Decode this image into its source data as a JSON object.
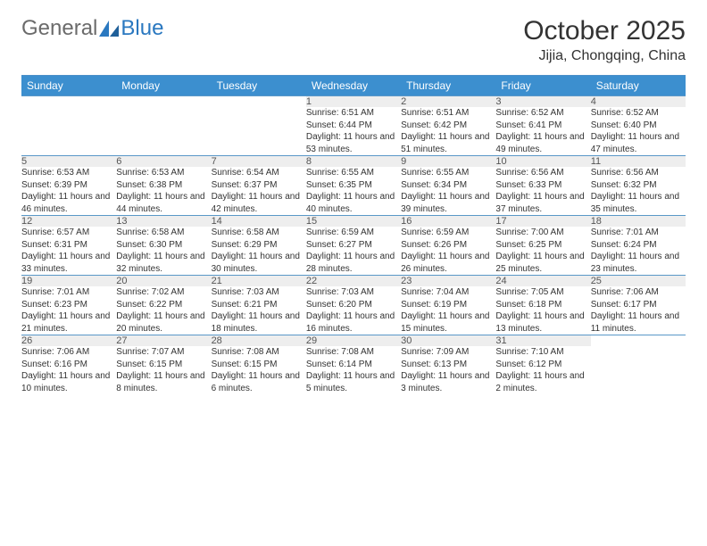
{
  "brand": {
    "part1": "General",
    "part2": "Blue"
  },
  "title": "October 2025",
  "location": "Jijia, Chongqing, China",
  "colors": {
    "header_bg": "#3c8fcf",
    "header_text": "#ffffff",
    "daynum_bg": "#eeeeee",
    "border": "#5a98c8",
    "logo_gray": "#6b6b6b",
    "logo_blue": "#2a78c0",
    "body_text": "#333333"
  },
  "weekdays": [
    "Sunday",
    "Monday",
    "Tuesday",
    "Wednesday",
    "Thursday",
    "Friday",
    "Saturday"
  ],
  "weeks": [
    [
      null,
      null,
      null,
      {
        "n": "1",
        "sr": "6:51 AM",
        "ss": "6:44 PM",
        "dl": "11 hours and 53 minutes."
      },
      {
        "n": "2",
        "sr": "6:51 AM",
        "ss": "6:42 PM",
        "dl": "11 hours and 51 minutes."
      },
      {
        "n": "3",
        "sr": "6:52 AM",
        "ss": "6:41 PM",
        "dl": "11 hours and 49 minutes."
      },
      {
        "n": "4",
        "sr": "6:52 AM",
        "ss": "6:40 PM",
        "dl": "11 hours and 47 minutes."
      }
    ],
    [
      {
        "n": "5",
        "sr": "6:53 AM",
        "ss": "6:39 PM",
        "dl": "11 hours and 46 minutes."
      },
      {
        "n": "6",
        "sr": "6:53 AM",
        "ss": "6:38 PM",
        "dl": "11 hours and 44 minutes."
      },
      {
        "n": "7",
        "sr": "6:54 AM",
        "ss": "6:37 PM",
        "dl": "11 hours and 42 minutes."
      },
      {
        "n": "8",
        "sr": "6:55 AM",
        "ss": "6:35 PM",
        "dl": "11 hours and 40 minutes."
      },
      {
        "n": "9",
        "sr": "6:55 AM",
        "ss": "6:34 PM",
        "dl": "11 hours and 39 minutes."
      },
      {
        "n": "10",
        "sr": "6:56 AM",
        "ss": "6:33 PM",
        "dl": "11 hours and 37 minutes."
      },
      {
        "n": "11",
        "sr": "6:56 AM",
        "ss": "6:32 PM",
        "dl": "11 hours and 35 minutes."
      }
    ],
    [
      {
        "n": "12",
        "sr": "6:57 AM",
        "ss": "6:31 PM",
        "dl": "11 hours and 33 minutes."
      },
      {
        "n": "13",
        "sr": "6:58 AM",
        "ss": "6:30 PM",
        "dl": "11 hours and 32 minutes."
      },
      {
        "n": "14",
        "sr": "6:58 AM",
        "ss": "6:29 PM",
        "dl": "11 hours and 30 minutes."
      },
      {
        "n": "15",
        "sr": "6:59 AM",
        "ss": "6:27 PM",
        "dl": "11 hours and 28 minutes."
      },
      {
        "n": "16",
        "sr": "6:59 AM",
        "ss": "6:26 PM",
        "dl": "11 hours and 26 minutes."
      },
      {
        "n": "17",
        "sr": "7:00 AM",
        "ss": "6:25 PM",
        "dl": "11 hours and 25 minutes."
      },
      {
        "n": "18",
        "sr": "7:01 AM",
        "ss": "6:24 PM",
        "dl": "11 hours and 23 minutes."
      }
    ],
    [
      {
        "n": "19",
        "sr": "7:01 AM",
        "ss": "6:23 PM",
        "dl": "11 hours and 21 minutes."
      },
      {
        "n": "20",
        "sr": "7:02 AM",
        "ss": "6:22 PM",
        "dl": "11 hours and 20 minutes."
      },
      {
        "n": "21",
        "sr": "7:03 AM",
        "ss": "6:21 PM",
        "dl": "11 hours and 18 minutes."
      },
      {
        "n": "22",
        "sr": "7:03 AM",
        "ss": "6:20 PM",
        "dl": "11 hours and 16 minutes."
      },
      {
        "n": "23",
        "sr": "7:04 AM",
        "ss": "6:19 PM",
        "dl": "11 hours and 15 minutes."
      },
      {
        "n": "24",
        "sr": "7:05 AM",
        "ss": "6:18 PM",
        "dl": "11 hours and 13 minutes."
      },
      {
        "n": "25",
        "sr": "7:06 AM",
        "ss": "6:17 PM",
        "dl": "11 hours and 11 minutes."
      }
    ],
    [
      {
        "n": "26",
        "sr": "7:06 AM",
        "ss": "6:16 PM",
        "dl": "11 hours and 10 minutes."
      },
      {
        "n": "27",
        "sr": "7:07 AM",
        "ss": "6:15 PM",
        "dl": "11 hours and 8 minutes."
      },
      {
        "n": "28",
        "sr": "7:08 AM",
        "ss": "6:15 PM",
        "dl": "11 hours and 6 minutes."
      },
      {
        "n": "29",
        "sr": "7:08 AM",
        "ss": "6:14 PM",
        "dl": "11 hours and 5 minutes."
      },
      {
        "n": "30",
        "sr": "7:09 AM",
        "ss": "6:13 PM",
        "dl": "11 hours and 3 minutes."
      },
      {
        "n": "31",
        "sr": "7:10 AM",
        "ss": "6:12 PM",
        "dl": "11 hours and 2 minutes."
      },
      null
    ]
  ],
  "labels": {
    "sunrise": "Sunrise: ",
    "sunset": "Sunset: ",
    "daylight": "Daylight: "
  }
}
